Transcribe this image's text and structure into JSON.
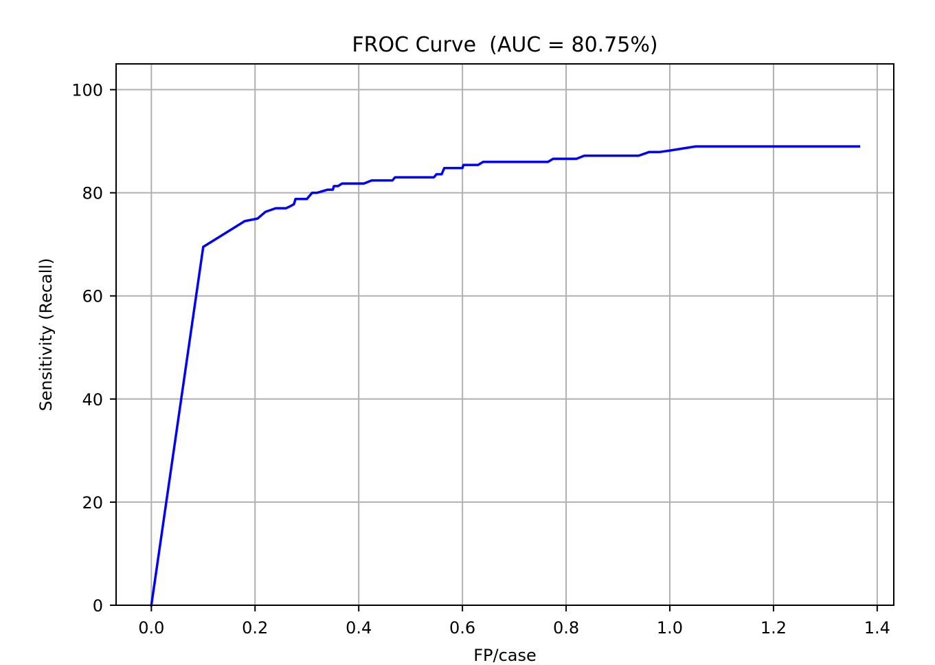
{
  "chart_data": {
    "type": "line",
    "title": "FROC Curve  (AUC = 80.75%)",
    "xlabel": "FP/case",
    "ylabel": "Sensitivity (Recall)",
    "xlim": [
      -0.068,
      1.432
    ],
    "ylim": [
      0,
      105
    ],
    "xticks": [
      0.0,
      0.2,
      0.4,
      0.6,
      0.8,
      1.0,
      1.2,
      1.4
    ],
    "xtick_labels": [
      "0.0",
      "0.2",
      "0.4",
      "0.6",
      "0.8",
      "1.0",
      "1.2",
      "1.4"
    ],
    "yticks": [
      0,
      20,
      40,
      60,
      80,
      100
    ],
    "ytick_labels": [
      "0",
      "20",
      "40",
      "60",
      "80",
      "100"
    ],
    "grid": true,
    "series": [
      {
        "color": "#0000ff",
        "x": [
          0.0,
          0.1,
          0.18,
          0.205,
          0.22,
          0.24,
          0.26,
          0.27,
          0.275,
          0.278,
          0.3,
          0.31,
          0.32,
          0.34,
          0.35,
          0.352,
          0.36,
          0.368,
          0.41,
          0.425,
          0.465,
          0.47,
          0.545,
          0.55,
          0.56,
          0.565,
          0.6,
          0.602,
          0.63,
          0.64,
          0.765,
          0.775,
          0.82,
          0.835,
          0.94,
          0.96,
          0.98,
          1.0,
          1.05,
          1.365
        ],
        "y": [
          0,
          69.5,
          74.5,
          75.0,
          76.3,
          77.0,
          77.0,
          77.5,
          77.8,
          78.8,
          78.8,
          80.0,
          80.0,
          80.6,
          80.6,
          81.3,
          81.3,
          81.8,
          81.8,
          82.4,
          82.4,
          83.0,
          83.0,
          83.6,
          83.6,
          84.8,
          84.8,
          85.4,
          85.4,
          86.0,
          86.0,
          86.6,
          86.6,
          87.2,
          87.2,
          87.9,
          87.9,
          88.2,
          89.0,
          89.0
        ]
      }
    ]
  }
}
